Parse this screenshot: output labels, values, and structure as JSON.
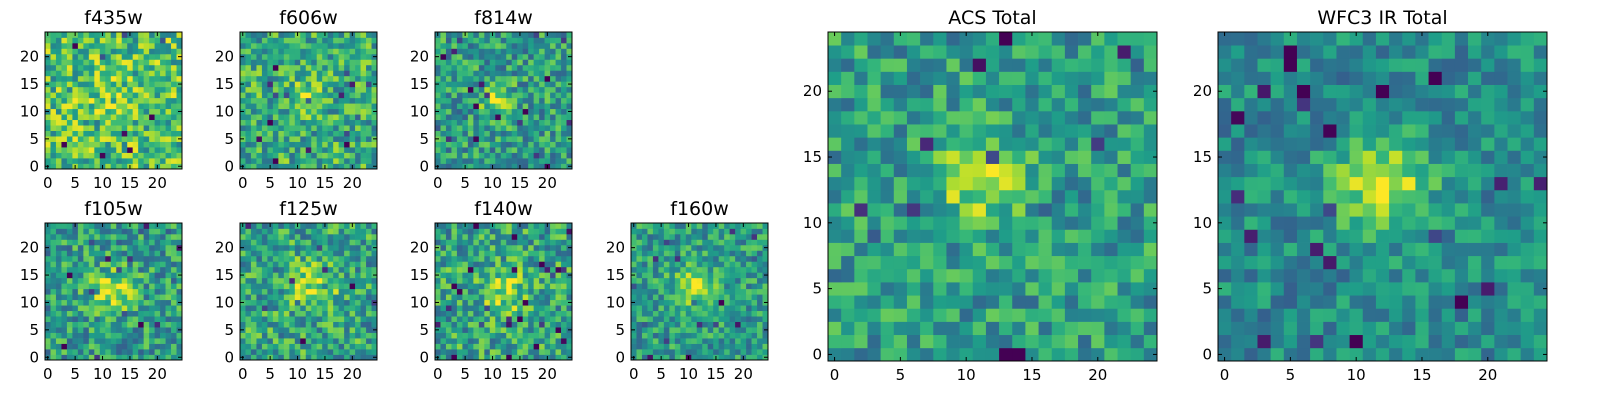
{
  "figure": {
    "colormap": "viridis",
    "colors": {
      "background": "#ffffff",
      "axes": "#000000"
    }
  },
  "chart_data": [
    {
      "type": "heatmap",
      "title": "f435w",
      "rows": 25,
      "cols": 25,
      "xticks": [
        0,
        5,
        10,
        15,
        20
      ],
      "yticks": [
        0,
        5,
        10,
        15,
        20
      ],
      "xlim": [
        -0.5,
        24.5
      ],
      "ylim": [
        -0.5,
        24.5
      ],
      "seed": 11,
      "blob": [
        12,
        12
      ],
      "peak": 0.08,
      "sigma": 3.5,
      "noise": 0.28,
      "base": 0.7
    },
    {
      "type": "heatmap",
      "title": "f606w",
      "rows": 25,
      "cols": 25,
      "xticks": [
        0,
        5,
        10,
        15,
        20
      ],
      "yticks": [
        0,
        5,
        10,
        15,
        20
      ],
      "xlim": [
        -0.5,
        24.5
      ],
      "ylim": [
        -0.5,
        24.5
      ],
      "seed": 23,
      "blob": [
        11,
        13
      ],
      "peak": 0.25,
      "sigma": 2.0,
      "noise": 0.26,
      "base": 0.62
    },
    {
      "type": "heatmap",
      "title": "f814w",
      "rows": 25,
      "cols": 25,
      "xticks": [
        0,
        5,
        10,
        15,
        20
      ],
      "yticks": [
        0,
        5,
        10,
        15,
        20
      ],
      "xlim": [
        -0.5,
        24.5
      ],
      "ylim": [
        -0.5,
        24.5
      ],
      "seed": 37,
      "blob": [
        11,
        12
      ],
      "peak": 0.35,
      "sigma": 2.0,
      "noise": 0.25,
      "base": 0.55
    },
    {
      "type": "heatmap",
      "title": "f105w",
      "rows": 25,
      "cols": 25,
      "xticks": [
        0,
        5,
        10,
        15,
        20
      ],
      "yticks": [
        0,
        5,
        10,
        15,
        20
      ],
      "xlim": [
        -0.5,
        24.5
      ],
      "ylim": [
        -0.5,
        24.5
      ],
      "seed": 41,
      "blob": [
        12,
        12
      ],
      "peak": 0.35,
      "sigma": 2.8,
      "noise": 0.25,
      "base": 0.55
    },
    {
      "type": "heatmap",
      "title": "f125w",
      "rows": 25,
      "cols": 25,
      "xticks": [
        0,
        5,
        10,
        15,
        20
      ],
      "yticks": [
        0,
        5,
        10,
        15,
        20
      ],
      "xlim": [
        -0.5,
        24.5
      ],
      "ylim": [
        -0.5,
        24.5
      ],
      "seed": 53,
      "blob": [
        13,
        13
      ],
      "peak": 0.3,
      "sigma": 3.0,
      "noise": 0.26,
      "base": 0.58
    },
    {
      "type": "heatmap",
      "title": "f140w",
      "rows": 25,
      "cols": 25,
      "xticks": [
        0,
        5,
        10,
        15,
        20
      ],
      "yticks": [
        0,
        5,
        10,
        15,
        20
      ],
      "xlim": [
        -0.5,
        24.5
      ],
      "ylim": [
        -0.5,
        24.5
      ],
      "seed": 67,
      "blob": [
        12,
        12
      ],
      "peak": 0.3,
      "sigma": 2.8,
      "noise": 0.26,
      "base": 0.58
    },
    {
      "type": "heatmap",
      "title": "f160w",
      "rows": 25,
      "cols": 25,
      "xticks": [
        0,
        5,
        10,
        15,
        20
      ],
      "yticks": [
        0,
        5,
        10,
        15,
        20
      ],
      "xlim": [
        -0.5,
        24.5
      ],
      "ylim": [
        -0.5,
        24.5
      ],
      "seed": 79,
      "blob": [
        11,
        13
      ],
      "peak": 0.4,
      "sigma": 2.5,
      "noise": 0.22,
      "base": 0.55
    },
    {
      "type": "heatmap",
      "title": "ACS Total",
      "rows": 25,
      "cols": 25,
      "xticks": [
        0,
        5,
        10,
        15,
        20
      ],
      "yticks": [
        0,
        5,
        10,
        15,
        20
      ],
      "xlim": [
        -0.5,
        24.5
      ],
      "ylim": [
        -0.5,
        24.5
      ],
      "seed": 97,
      "blob": [
        11,
        13
      ],
      "peak": 0.35,
      "sigma": 2.2,
      "noise": 0.22,
      "base": 0.55
    },
    {
      "type": "heatmap",
      "title": "WFC3 IR Total",
      "rows": 25,
      "cols": 25,
      "xticks": [
        0,
        5,
        10,
        15,
        20
      ],
      "yticks": [
        0,
        5,
        10,
        15,
        20
      ],
      "xlim": [
        -0.5,
        24.5
      ],
      "ylim": [
        -0.5,
        24.5
      ],
      "seed": 109,
      "blob": [
        12,
        13
      ],
      "peak": 0.45,
      "sigma": 2.6,
      "noise": 0.18,
      "base": 0.48
    }
  ]
}
